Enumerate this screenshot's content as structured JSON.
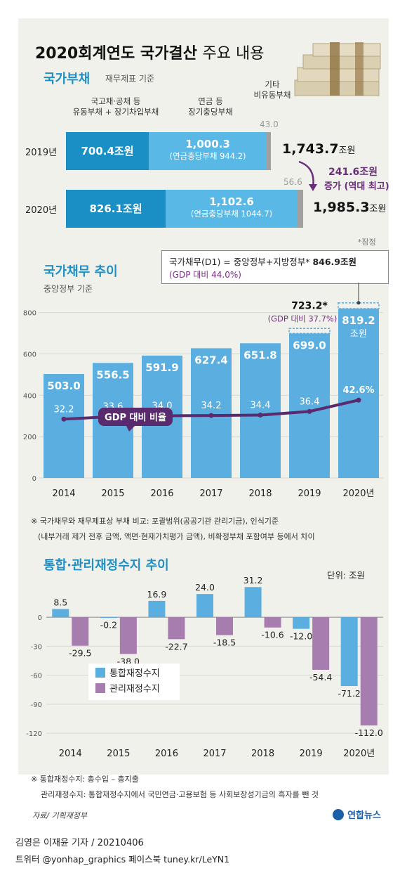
{
  "main_title_bold": "2020회계연도 국가결산",
  "main_title_light": "주요 내용",
  "debt": {
    "title": "국가부채",
    "subtitle": "재무제표 기준",
    "col1_header": [
      "국고채·공채 등",
      "유동부채 + 장기차입부채"
    ],
    "col2_header": [
      "연금 등",
      "장기충당부채"
    ],
    "col3_header": [
      "기타",
      "비유동부채"
    ],
    "rows": [
      {
        "year": "2019년",
        "a": "700.4조원",
        "b": "1,000.3",
        "b_note": "(연금충당부채 944.2)",
        "c": "43.0",
        "total": "1,743.7",
        "unit": "조원"
      },
      {
        "year": "2020년",
        "a": "826.1조원",
        "b": "1,102.6",
        "b_note": "(연금충당부채 1044.7)",
        "c": "56.6",
        "total": "1,985.3",
        "unit": "조원"
      }
    ],
    "increase_1": "241.6조원",
    "increase_2": "증가 (역대 최고)"
  },
  "provisional": "*잠정",
  "trend": {
    "title": "국가채무 추이",
    "subtitle": "중앙정부 기준",
    "callout_1": "국가채무(D1) = 중앙정부+지방정부*",
    "callout_value": "846.9조원",
    "callout_2": "(GDP 대비 44.0%)",
    "d1_2019": "723.2*",
    "d1_2019_ratio": "(GDP 대비 37.7%)",
    "ratio_label": "GDP 대비 비율",
    "unit_2020": "조원",
    "note_1": "※ 국가채무와 재무제표상 부채 비교: 포괄범위(공공기관 관리기금), 인식기준",
    "note_2": "(내부거래 제거 전후 금액, 액면·현재가치평가 금액), 비확정부채 포함여부 등에서 차이"
  },
  "balance": {
    "title": "통합·관리재정수지 추이",
    "unit_label": "단위: 조원",
    "note_1": "※ 통합재정수지: 총수입 – 총지출",
    "note_2": "관리재정수지: 통합재정수지에서 국민연금·고용보험 등 사회보장성기금의 흑자를 뺀 것"
  },
  "source": "자료/ 기획재정부",
  "logo": "연합뉴스",
  "byline": "김영은 이재윤 기자 / 20210406",
  "social": "트위터 @yonhap_graphics  페이스북 tuney.kr/LeYN1",
  "colors": {
    "blue_dark": "#1a8fc6",
    "blue_light": "#5ab8e6",
    "bar_blue": "#5aaee0",
    "purple": "#5a2a6e",
    "purple_bar": "#a77cae",
    "grey": "#a0a0a0",
    "title_blue": "#1f8fc4"
  },
  "chart_data": [
    {
      "type": "bar",
      "categories": [
        "2014",
        "2015",
        "2016",
        "2017",
        "2018",
        "2019",
        "2020년"
      ],
      "series": [
        {
          "values": [
            503.0,
            556.5,
            591.9,
            627.4,
            651.8,
            699.0,
            819.2
          ]
        },
        {
          "name": "GDP 대비 비율",
          "type": "line",
          "values": [
            32.2,
            33.6,
            34.0,
            34.2,
            34.4,
            36.4,
            42.6
          ]
        }
      ],
      "value_labels": [
        "503.0",
        "556.5",
        "591.9",
        "627.4",
        "651.8",
        "699.0",
        "819.2"
      ],
      "ratio_labels": [
        "32.2",
        "33.6",
        "34.0",
        "34.2",
        "34.4",
        "36.4",
        "42.6%"
      ],
      "yticks": [
        "0",
        "200",
        "400",
        "600",
        "800"
      ],
      "ylim": [
        0,
        850
      ]
    },
    {
      "type": "bar",
      "categories": [
        "2014",
        "2015",
        "2016",
        "2017",
        "2018",
        "2019",
        "2020년"
      ],
      "series": [
        {
          "name": "통합재정수지",
          "values": [
            8.5,
            -0.2,
            16.9,
            24.0,
            31.2,
            -12.0,
            -71.2
          ]
        },
        {
          "name": "관리재정수지",
          "values": [
            -29.5,
            -38.0,
            -22.7,
            -18.5,
            -10.6,
            -54.4,
            -112.0
          ]
        }
      ],
      "integrated_labels": [
        "8.5",
        "-0.2",
        "16.9",
        "24.0",
        "31.2",
        "-12.0",
        "-71.2"
      ],
      "managed_labels": [
        "-29.5",
        "-38.0",
        "-22.7",
        "-18.5",
        "-10.6",
        "-54.4",
        "-112.0"
      ],
      "yticks": [
        "0",
        "-30",
        "-60",
        "-90",
        "-120"
      ],
      "ylim": [
        -125,
        35
      ]
    }
  ]
}
